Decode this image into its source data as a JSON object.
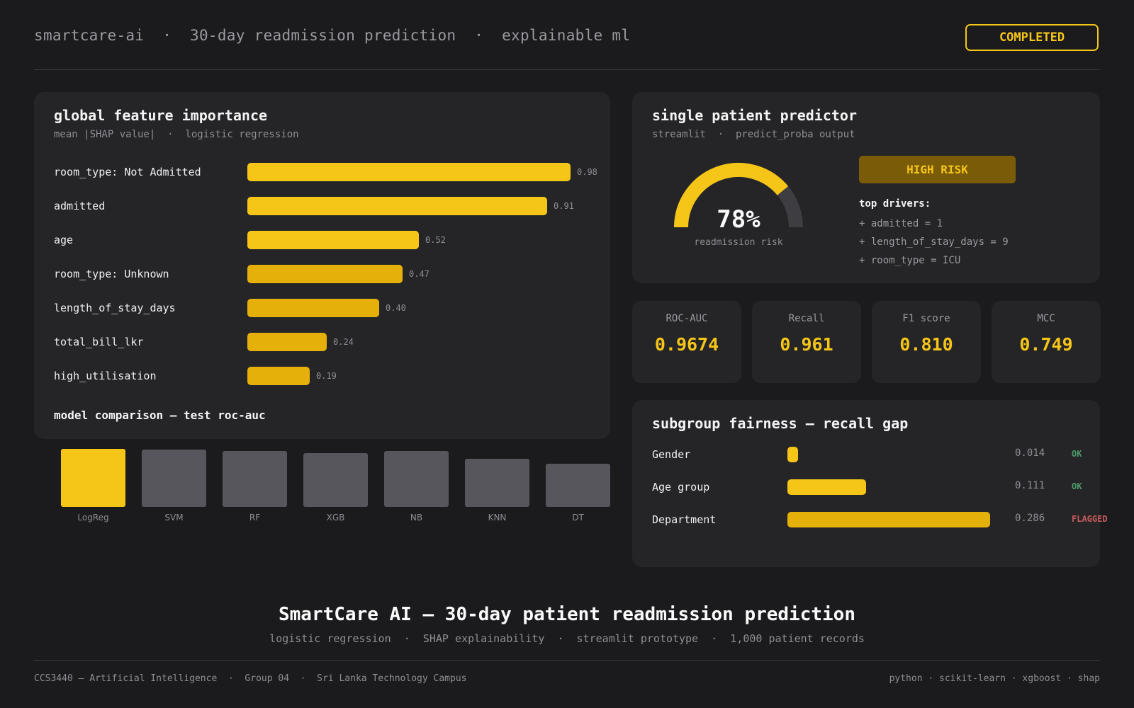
{
  "header": {
    "title": "smartcare-ai  ·  30-day readmission prediction  ·  explainable ml",
    "status": "COMPLETED"
  },
  "feature_importance": {
    "title": "global feature importance",
    "subtitle": "mean |SHAP value|  ·  logistic regression",
    "items": [
      {
        "label": "room_type: Not Admitted",
        "value": 0.98,
        "value_label": "0.98"
      },
      {
        "label": "admitted",
        "value": 0.91,
        "value_label": "0.91"
      },
      {
        "label": "age",
        "value": 0.52,
        "value_label": "0.52"
      },
      {
        "label": "room_type: Unknown",
        "value": 0.47,
        "value_label": "0.47"
      },
      {
        "label": "length_of_stay_days",
        "value": 0.4,
        "value_label": "0.40"
      },
      {
        "label": "total_bill_lkr",
        "value": 0.24,
        "value_label": "0.24"
      },
      {
        "label": "high_utilisation",
        "value": 0.19,
        "value_label": "0.19"
      }
    ]
  },
  "model_comparison": {
    "title": "model comparison — test roc-auc",
    "models": [
      {
        "label": "LogReg",
        "relative": 1.0,
        "highlight": true
      },
      {
        "label": "SVM",
        "relative": 0.99,
        "highlight": false
      },
      {
        "label": "RF",
        "relative": 0.96,
        "highlight": false
      },
      {
        "label": "XGB",
        "relative": 0.93,
        "highlight": false
      },
      {
        "label": "NB",
        "relative": 0.96,
        "highlight": false
      },
      {
        "label": "KNN",
        "relative": 0.83,
        "highlight": false
      },
      {
        "label": "DT",
        "relative": 0.74,
        "highlight": false
      }
    ]
  },
  "predictor": {
    "title": "single patient predictor",
    "subtitle": "streamlit  ·  predict_proba output",
    "risk_fraction": 0.78,
    "risk_value": "78%",
    "risk_caption": "readmission risk",
    "risk_badge": "HIGH RISK",
    "drivers_title": "top drivers:",
    "drivers": [
      "+ admitted = 1",
      "+ length_of_stay_days = 9",
      "+ room_type = ICU"
    ]
  },
  "metrics": [
    {
      "label": "ROC-AUC",
      "value": "0.9674"
    },
    {
      "label": "Recall",
      "value": "0.961"
    },
    {
      "label": "F1 score",
      "value": "0.810"
    },
    {
      "label": "MCC",
      "value": "0.749"
    }
  ],
  "fairness": {
    "title": "subgroup fairness — recall gap",
    "rows": [
      {
        "label": "Gender",
        "gap": 0.014,
        "value": "0.014",
        "status": "OK"
      },
      {
        "label": "Age group",
        "gap": 0.111,
        "value": "0.111",
        "status": "OK"
      },
      {
        "label": "Department",
        "gap": 0.286,
        "value": "0.286",
        "status": "FLAGGED"
      }
    ]
  },
  "footer": {
    "title": "SmartCare AI — 30-day patient readmission prediction",
    "subtitle": "logistic regression  ·  SHAP explainability  ·  streamlit prototype  ·  1,000 patient records",
    "left": "CCS3440 — Artificial Intelligence  ·  Group 04  ·  Sri Lanka Technology Campus",
    "right": "python · scikit-learn · xgboost · shap"
  },
  "colors": {
    "accent": "#f5c518",
    "accent_dark": "#e6b00a",
    "muted_bar": "#57565c",
    "ok": "#4f9a6a",
    "flagged": "#c65a5a",
    "badge_bg": "#7a5c08"
  }
}
